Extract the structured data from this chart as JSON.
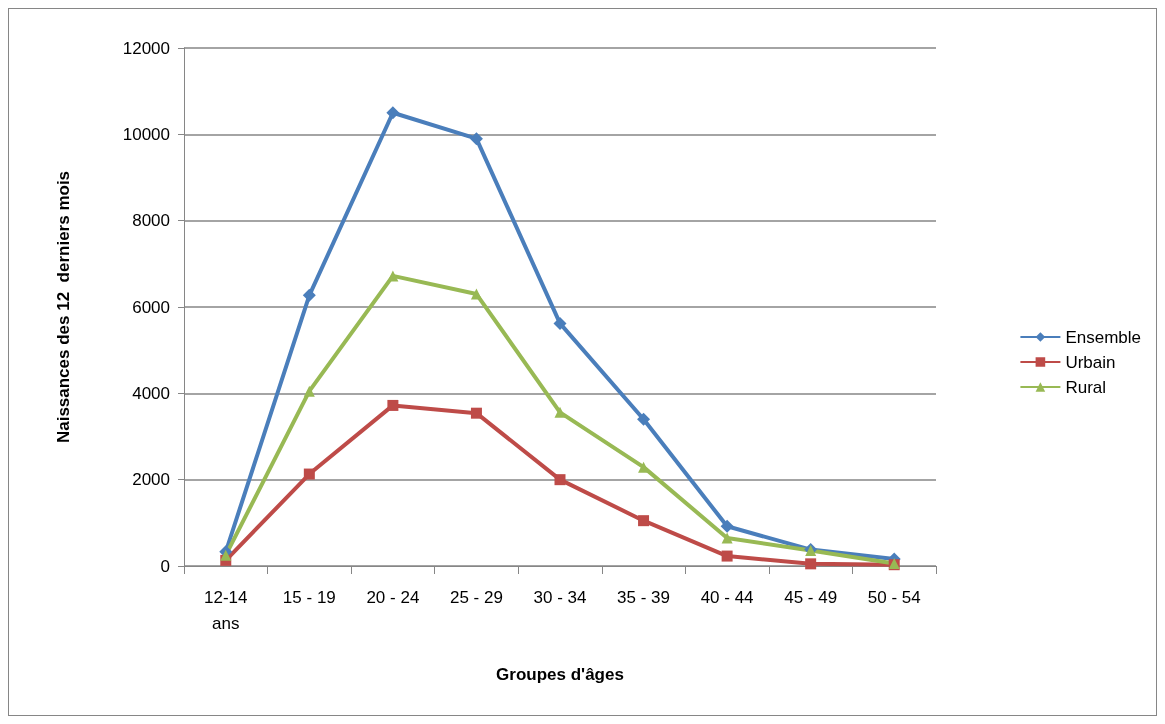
{
  "chart_data": {
    "type": "line",
    "xlabel": "Groupes d'âges",
    "ylabel": "Naissances des 12  derniers mois",
    "categories": [
      "12-14\nans",
      "15 - 19",
      "20 - 24",
      "25 - 29",
      "30 - 34",
      "35 - 39",
      "40 - 44",
      "45 - 49",
      "50 - 54"
    ],
    "series": [
      {
        "name": "Ensemble",
        "color": "#4a7ebb",
        "marker": "diamond",
        "values": [
          330,
          6270,
          10500,
          9900,
          5620,
          3400,
          920,
          380,
          160
        ]
      },
      {
        "name": "Urbain",
        "color": "#be4b48",
        "marker": "square",
        "values": [
          130,
          2130,
          3720,
          3540,
          2000,
          1050,
          230,
          50,
          30
        ]
      },
      {
        "name": "Rural",
        "color": "#98b954",
        "marker": "triangle",
        "values": [
          250,
          4050,
          6720,
          6300,
          3560,
          2290,
          650,
          360,
          60
        ]
      }
    ],
    "ylim": [
      0,
      12000
    ],
    "yticks": [
      0,
      2000,
      4000,
      6000,
      8000,
      10000,
      12000
    ],
    "grid": "y",
    "legend": "right"
  }
}
